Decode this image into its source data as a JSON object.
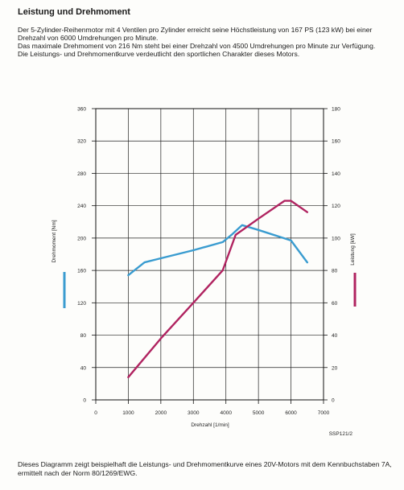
{
  "document": {
    "heading": "Leistung und Drehmoment",
    "intro": [
      "Der 5-Zylinder-Reihenmotor mit 4 Ventilen pro Zylinder erreicht seine Höchstleistung von 167 PS (123 kW) bei einer Drehzahl von 6000 Umdrehungen pro Minute.",
      "Das maximale Drehmoment von 216 Nm steht bei einer Drehzahl von 4500 Umdrehungen pro Minute zur Verfügung.",
      "Die Leistungs- und Drehmomentkurve verdeutlicht den sportlichen Charakter dieses Motors."
    ],
    "figure_code": "SSP121/2",
    "footer": "Dieses Diagramm zeigt beispielhaft die Leistungs- und Drehmomentkurve eines 20V-Motors mit dem Kennbuchstaben 7A, ermittelt nach der Norm 80/1269/EWG."
  },
  "chart_data": {
    "type": "line",
    "xlabel": "Drehzahl [1/min]",
    "ylabel": "Drehmoment [Nm]",
    "y2label": "Leistung [kW]",
    "xlim": [
      0,
      7000
    ],
    "ylim": [
      0,
      360
    ],
    "y2lim": [
      0,
      180
    ],
    "xticks": [
      0,
      1000,
      2000,
      3000,
      4000,
      5000,
      6000,
      7000
    ],
    "yticks": [
      0,
      40,
      80,
      120,
      160,
      200,
      240,
      280,
      320,
      360
    ],
    "y2ticks": [
      0,
      20,
      40,
      60,
      80,
      100,
      120,
      140,
      160,
      180
    ],
    "grid": true,
    "series": [
      {
        "axis": "left",
        "color": "#3a9cd0",
        "points": [
          [
            1000,
            154
          ],
          [
            1500,
            170
          ],
          [
            2000,
            175
          ],
          [
            3000,
            185
          ],
          [
            3900,
            195
          ],
          [
            4200,
            205
          ],
          [
            4500,
            216
          ],
          [
            5000,
            210
          ],
          [
            6000,
            197
          ],
          [
            6500,
            170
          ]
        ]
      },
      {
        "axis": "right",
        "color": "#b02360",
        "points": [
          [
            1000,
            14
          ],
          [
            2000,
            38
          ],
          [
            3000,
            60
          ],
          [
            3900,
            80
          ],
          [
            4300,
            102
          ],
          [
            5000,
            112
          ],
          [
            5800,
            123
          ],
          [
            6000,
            123
          ],
          [
            6500,
            116
          ]
        ]
      }
    ]
  }
}
